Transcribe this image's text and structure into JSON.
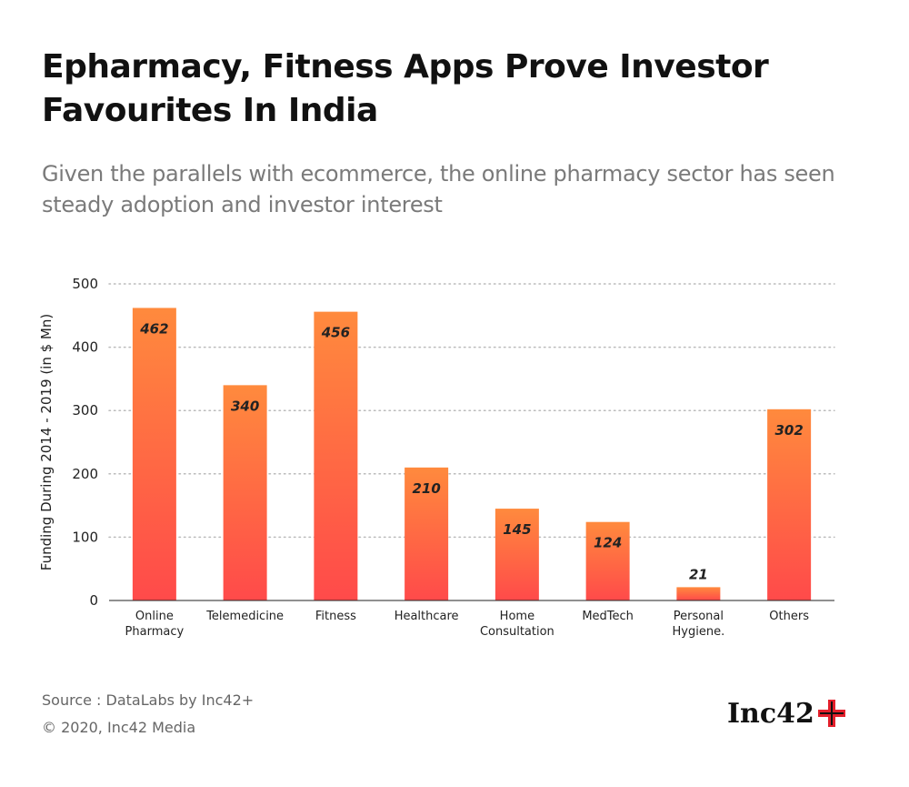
{
  "header": {
    "title": "Epharmacy, Fitness Apps Prove Investor Favourites In India",
    "subtitle": "Given the parallels with ecommerce, the online pharmacy sector has seen steady adoption and investor interest"
  },
  "chart_data": {
    "type": "bar",
    "title": "",
    "xlabel": "",
    "ylabel": "Funding During 2014 - 2019 (in $ Mn)",
    "categories": [
      [
        "Online",
        "Pharmacy"
      ],
      [
        "Telemedicine"
      ],
      [
        "Fitness"
      ],
      [
        "Healthcare"
      ],
      [
        "Home",
        "Consultation"
      ],
      [
        "MedTech"
      ],
      [
        "Personal",
        "Hygiene."
      ],
      [
        "Others"
      ]
    ],
    "values": [
      462,
      340,
      456,
      210,
      145,
      124,
      21,
      302
    ],
    "ylim": [
      0,
      500
    ],
    "yticks": [
      0,
      100,
      200,
      300,
      400,
      500
    ],
    "grid": true,
    "colors": {
      "bar_top": "#ff8a3d",
      "bar_bottom": "#ff4a4a",
      "grid": "#bbbbbb",
      "axis": "#222222"
    }
  },
  "footer": {
    "source": "Source : DataLabs by Inc42+",
    "copyright": "© 2020, Inc42 Media"
  },
  "logo": {
    "text": "Inc42",
    "icon": "plus-icon"
  }
}
